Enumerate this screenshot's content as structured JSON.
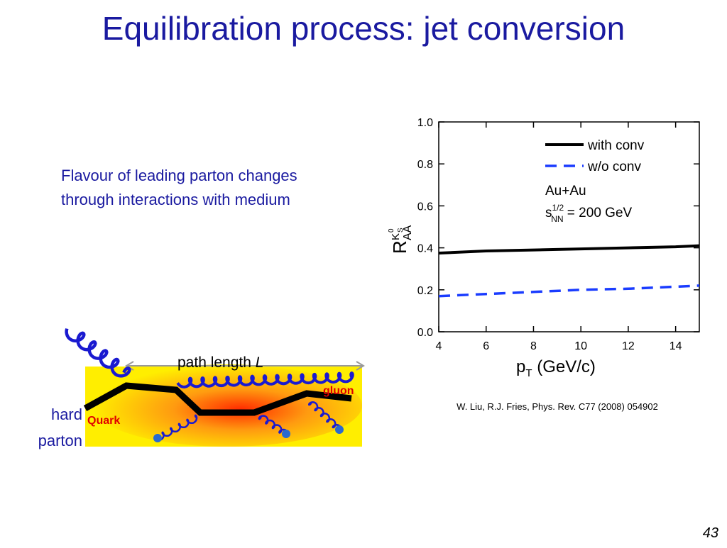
{
  "title": "Equilibration process: jet conversion",
  "text": [
    "Flavour of leading parton changes",
    "through interactions with medium"
  ],
  "diagram": {
    "path_label": "path length ",
    "path_symbol": "L",
    "gluon": "gluon",
    "quark": "Quark",
    "hard_parton": [
      "hard",
      "parton"
    ]
  },
  "citation": "W. Liu, R.J. Fries, Phys. Rev. C77 (2008) 054902",
  "page_number": "43",
  "chart_data": {
    "type": "line",
    "xlabel": {
      "base": "p",
      "sub": "T",
      "rest": " (GeV/c)"
    },
    "ylabel": {
      "base": "R",
      "sup": "K",
      "sup_sub": "S",
      "sup_sup": "0",
      "sub": "AA"
    },
    "x": [
      4,
      6,
      8,
      10,
      12,
      14,
      15
    ],
    "series": [
      {
        "name": "with conv",
        "color": "#000000",
        "dash": false,
        "values": [
          0.375,
          0.385,
          0.39,
          0.395,
          0.4,
          0.405,
          0.41
        ]
      },
      {
        "name": "w/o conv",
        "color": "#1a3cff",
        "dash": true,
        "values": [
          0.17,
          0.18,
          0.19,
          0.2,
          0.205,
          0.215,
          0.22
        ]
      }
    ],
    "annotations": {
      "system": "Au+Au",
      "energy": {
        "base": "s",
        "sup": "1/2",
        "sub": "NN",
        "rest": " = 200 GeV"
      }
    },
    "xlim": [
      4,
      15
    ],
    "xticks": [
      4,
      6,
      8,
      10,
      12,
      14
    ],
    "ylim": [
      0,
      1
    ],
    "yticks": [
      {
        "value": 0,
        "label": "0.0"
      },
      0.2,
      0.4,
      0.6,
      0.8,
      {
        "value": 1,
        "label": "1.0"
      }
    ],
    "legend": "upper right"
  }
}
